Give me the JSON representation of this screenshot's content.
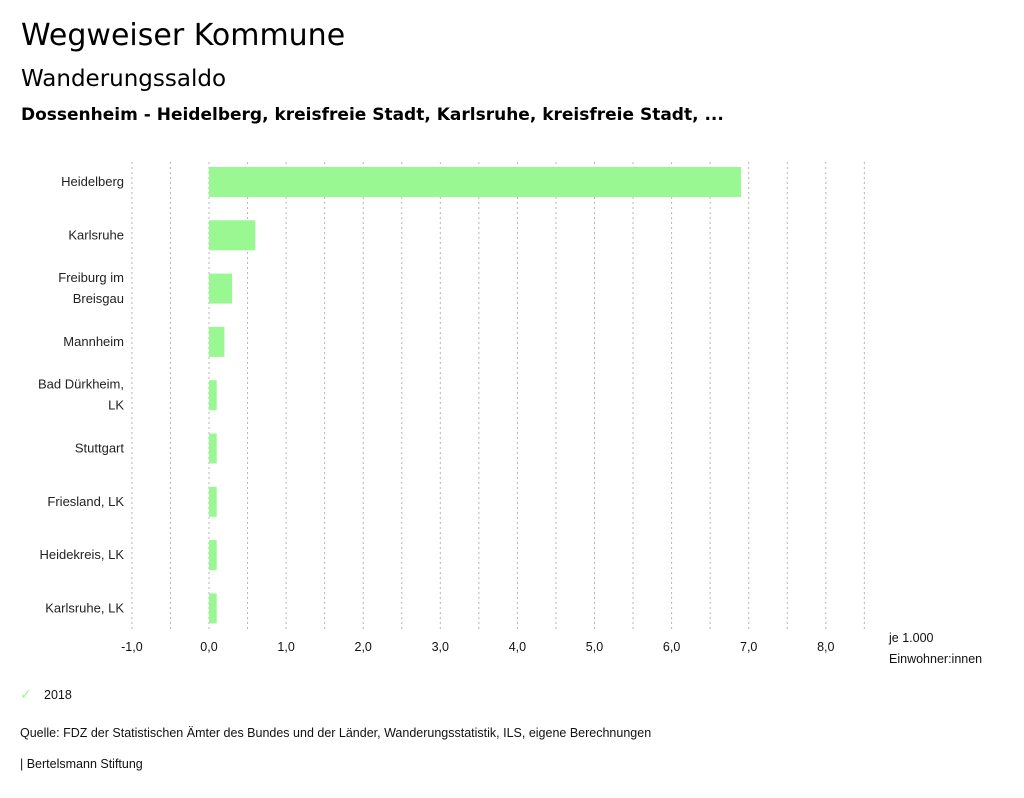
{
  "header": {
    "title": "Wegweiser Kommune",
    "subtitle": "Wanderungssaldo",
    "region": "Dossenheim - Heidelberg, kreisfreie Stadt, Karlsruhe, kreisfreie Stadt, ..."
  },
  "chart_data": {
    "type": "bar",
    "orientation": "horizontal",
    "title": "Wanderungssaldo",
    "categories": [
      [
        "Heidelberg"
      ],
      [
        "Karlsruhe"
      ],
      [
        "Freiburg im",
        "Breisgau"
      ],
      [
        "Mannheim"
      ],
      [
        "Bad Dürkheim,",
        "LK"
      ],
      [
        "Stuttgart"
      ],
      [
        "Friesland, LK"
      ],
      [
        "Heidekreis, LK"
      ],
      [
        "Karlsruhe, LK"
      ]
    ],
    "series": [
      {
        "name": "2018",
        "color": "#9af893",
        "values": [
          6.9,
          0.6,
          0.3,
          0.2,
          0.1,
          0.1,
          0.1,
          0.1,
          0.1
        ]
      }
    ],
    "xlim": [
      -1.0,
      8.5
    ],
    "xticks": [
      -1.0,
      0.0,
      1.0,
      2.0,
      3.0,
      4.0,
      5.0,
      6.0,
      7.0,
      8.0
    ],
    "xtick_labels": [
      "-1,0",
      "0,0",
      "1,0",
      "2,0",
      "3,0",
      "4,0",
      "5,0",
      "6,0",
      "7,0",
      "8,0"
    ],
    "grid_step": 0.5,
    "grid": true,
    "xlabel": [
      "je 1.000",
      "Einwohner:innen"
    ],
    "ylabel": "",
    "legend_position": "bottom-left"
  },
  "legend": {
    "items": [
      {
        "label": "2018",
        "icon": "check-icon"
      }
    ]
  },
  "footer": {
    "source": "Quelle: FDZ der Statistischen Ämter des Bundes und der Länder, Wanderungsstatistik, ILS, eigene Berechnungen",
    "credit": "| Bertelsmann Stiftung"
  }
}
